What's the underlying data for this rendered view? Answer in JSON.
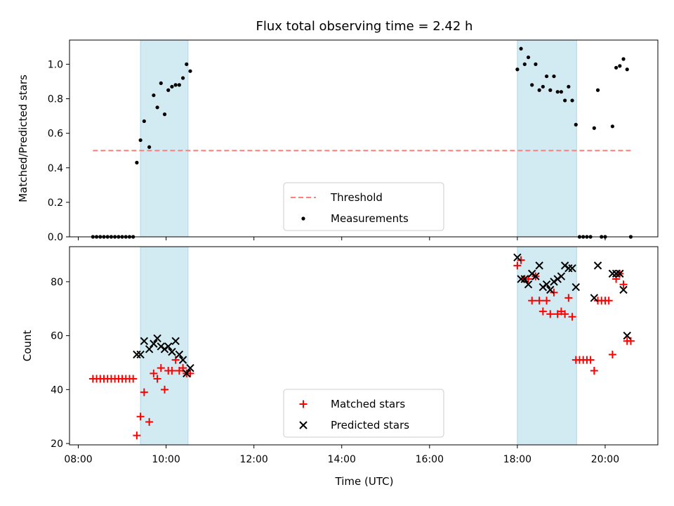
{
  "title": "Flux total observing time = 2.42 h",
  "colors": {
    "threshold": "#ff7f7f",
    "measurement": "#000000",
    "matched": "#ff0000",
    "predicted": "#000000",
    "shade": "#add8e6"
  },
  "chart_data": [
    {
      "id": "top",
      "type": "scatter",
      "ylabel": "Matched/Predicted stars",
      "xlim": [
        "07:48",
        "21:12"
      ],
      "ylim": [
        0,
        1.14
      ],
      "yticks": [
        0.0,
        0.2,
        0.4,
        0.6,
        0.8,
        1.0
      ],
      "ytick_labels": [
        "0.0",
        "0.2",
        "0.4",
        "0.6",
        "0.8",
        "1.0"
      ],
      "shaded_intervals": [
        [
          "09:25",
          "10:30"
        ],
        [
          "18:00",
          "19:21"
        ]
      ],
      "threshold": {
        "name": "Threshold",
        "value": 0.5,
        "x_range": [
          "08:20",
          "20:35"
        ]
      },
      "legend": {
        "position": "lower center",
        "entries": [
          "Threshold",
          "Measurements"
        ]
      },
      "series": [
        {
          "name": "Measurements",
          "points": [
            [
              "08:20",
              0
            ],
            [
              "08:25",
              0
            ],
            [
              "08:30",
              0
            ],
            [
              "08:35",
              0
            ],
            [
              "08:40",
              0
            ],
            [
              "08:45",
              0
            ],
            [
              "08:50",
              0
            ],
            [
              "08:55",
              0
            ],
            [
              "09:00",
              0
            ],
            [
              "09:05",
              0
            ],
            [
              "09:10",
              0
            ],
            [
              "09:15",
              0
            ],
            [
              "09:20",
              0.43
            ],
            [
              "09:25",
              0.56
            ],
            [
              "09:30",
              0.67
            ],
            [
              "09:37",
              0.52
            ],
            [
              "09:43",
              0.82
            ],
            [
              "09:48",
              0.75
            ],
            [
              "09:53",
              0.89
            ],
            [
              "09:58",
              0.71
            ],
            [
              "10:03",
              0.85
            ],
            [
              "10:08",
              0.87
            ],
            [
              "10:13",
              0.88
            ],
            [
              "10:18",
              0.88
            ],
            [
              "10:23",
              0.92
            ],
            [
              "10:28",
              1.0
            ],
            [
              "10:33",
              0.96
            ],
            [
              "18:00",
              0.97
            ],
            [
              "18:05",
              1.09
            ],
            [
              "18:10",
              1.0
            ],
            [
              "18:15",
              1.04
            ],
            [
              "18:20",
              0.88
            ],
            [
              "18:25",
              1.0
            ],
            [
              "18:30",
              0.85
            ],
            [
              "18:35",
              0.87
            ],
            [
              "18:40",
              0.93
            ],
            [
              "18:45",
              0.85
            ],
            [
              "18:50",
              0.93
            ],
            [
              "18:55",
              0.84
            ],
            [
              "19:00",
              0.84
            ],
            [
              "19:05",
              0.79
            ],
            [
              "19:10",
              0.87
            ],
            [
              "19:15",
              0.79
            ],
            [
              "19:20",
              0.65
            ],
            [
              "19:25",
              0
            ],
            [
              "19:30",
              0
            ],
            [
              "19:35",
              0
            ],
            [
              "19:40",
              0
            ],
            [
              "19:45",
              0.63
            ],
            [
              "19:50",
              0.85
            ],
            [
              "19:55",
              0
            ],
            [
              "20:00",
              0
            ],
            [
              "20:10",
              0.64
            ],
            [
              "20:15",
              0.98
            ],
            [
              "20:20",
              0.99
            ],
            [
              "20:25",
              1.03
            ],
            [
              "20:30",
              0.97
            ],
            [
              "20:35",
              0
            ]
          ]
        }
      ]
    },
    {
      "id": "bottom",
      "type": "scatter",
      "xlabel": "Time (UTC)",
      "ylabel": "Count",
      "xlim": [
        "07:48",
        "21:12"
      ],
      "xticks": [
        "08:00",
        "10:00",
        "12:00",
        "14:00",
        "16:00",
        "18:00",
        "20:00"
      ],
      "ylim": [
        19.5,
        93
      ],
      "yticks": [
        20,
        40,
        60,
        80
      ],
      "ytick_labels": [
        "20",
        "40",
        "60",
        "80"
      ],
      "shaded_intervals": [
        [
          "09:25",
          "10:30"
        ],
        [
          "18:00",
          "19:21"
        ]
      ],
      "legend": {
        "position": "lower center",
        "entries": [
          "Matched stars",
          "Predicted stars"
        ]
      },
      "series": [
        {
          "name": "Matched stars",
          "marker": "plus",
          "points": [
            [
              "08:20",
              44
            ],
            [
              "08:25",
              44
            ],
            [
              "08:30",
              44
            ],
            [
              "08:35",
              44
            ],
            [
              "08:40",
              44
            ],
            [
              "08:45",
              44
            ],
            [
              "08:50",
              44
            ],
            [
              "08:55",
              44
            ],
            [
              "09:00",
              44
            ],
            [
              "09:05",
              44
            ],
            [
              "09:10",
              44
            ],
            [
              "09:15",
              44
            ],
            [
              "09:20",
              23
            ],
            [
              "09:25",
              30
            ],
            [
              "09:30",
              39
            ],
            [
              "09:37",
              28
            ],
            [
              "09:43",
              46
            ],
            [
              "09:48",
              44
            ],
            [
              "09:53",
              48
            ],
            [
              "09:58",
              40
            ],
            [
              "10:03",
              47
            ],
            [
              "10:08",
              47
            ],
            [
              "10:13",
              51
            ],
            [
              "10:18",
              47
            ],
            [
              "10:23",
              48
            ],
            [
              "10:28",
              46
            ],
            [
              "10:33",
              46
            ],
            [
              "18:00",
              86
            ],
            [
              "18:05",
              88
            ],
            [
              "18:10",
              81
            ],
            [
              "18:15",
              81
            ],
            [
              "18:20",
              73
            ],
            [
              "18:25",
              82
            ],
            [
              "18:30",
              73
            ],
            [
              "18:35",
              69
            ],
            [
              "18:40",
              73
            ],
            [
              "18:45",
              68
            ],
            [
              "18:50",
              76
            ],
            [
              "18:55",
              68
            ],
            [
              "19:00",
              69
            ],
            [
              "19:05",
              68
            ],
            [
              "19:10",
              74
            ],
            [
              "19:15",
              67
            ],
            [
              "19:20",
              51
            ],
            [
              "19:25",
              51
            ],
            [
              "19:30",
              51
            ],
            [
              "19:35",
              51
            ],
            [
              "19:40",
              51
            ],
            [
              "19:45",
              47
            ],
            [
              "19:50",
              73
            ],
            [
              "19:55",
              73
            ],
            [
              "20:00",
              73
            ],
            [
              "20:05",
              73
            ],
            [
              "20:10",
              53
            ],
            [
              "20:15",
              81
            ],
            [
              "20:20",
              83
            ],
            [
              "20:25",
              79
            ],
            [
              "20:30",
              58
            ],
            [
              "20:35",
              58
            ]
          ]
        },
        {
          "name": "Predicted stars",
          "marker": "x",
          "points": [
            [
              "09:20",
              53
            ],
            [
              "09:25",
              53
            ],
            [
              "09:30",
              58
            ],
            [
              "09:37",
              55
            ],
            [
              "09:43",
              57
            ],
            [
              "09:48",
              59
            ],
            [
              "09:53",
              56
            ],
            [
              "09:58",
              55
            ],
            [
              "10:03",
              56
            ],
            [
              "10:08",
              54
            ],
            [
              "10:13",
              58
            ],
            [
              "10:18",
              53
            ],
            [
              "10:23",
              51
            ],
            [
              "10:28",
              46
            ],
            [
              "10:33",
              48
            ],
            [
              "18:00",
              89
            ],
            [
              "18:05",
              81
            ],
            [
              "18:10",
              81
            ],
            [
              "18:15",
              79
            ],
            [
              "18:20",
              83
            ],
            [
              "18:25",
              82
            ],
            [
              "18:30",
              86
            ],
            [
              "18:35",
              78
            ],
            [
              "18:40",
              79
            ],
            [
              "18:45",
              77
            ],
            [
              "18:50",
              80
            ],
            [
              "18:55",
              81
            ],
            [
              "19:00",
              82
            ],
            [
              "19:05",
              86
            ],
            [
              "19:10",
              85
            ],
            [
              "19:15",
              85
            ],
            [
              "19:20",
              78
            ],
            [
              "19:45",
              74
            ],
            [
              "19:50",
              86
            ],
            [
              "20:10",
              83
            ],
            [
              "20:15",
              83
            ],
            [
              "20:20",
              83
            ],
            [
              "20:25",
              77
            ],
            [
              "20:30",
              60
            ]
          ]
        }
      ]
    }
  ]
}
